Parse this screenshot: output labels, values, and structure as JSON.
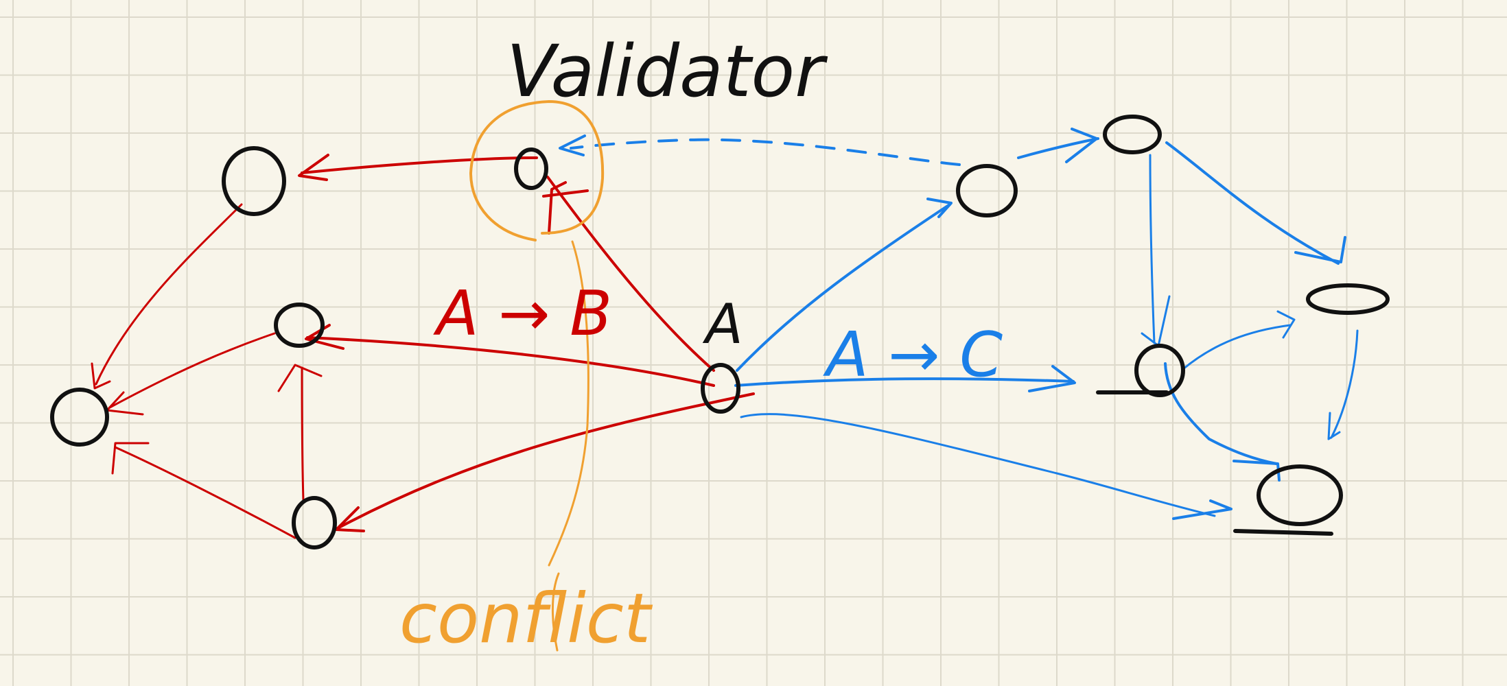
{
  "labels": {
    "validator": "Validator",
    "conflict": "conflict",
    "node_a": "A",
    "red_edge": "A → B",
    "blue_edge": "A → C"
  },
  "colors": {
    "background": "#f8f5ea",
    "grid": "#ddd9cb",
    "ink": "#111111",
    "red": "#cc0000",
    "blue": "#1a7fe8",
    "orange": "#f0a030"
  }
}
